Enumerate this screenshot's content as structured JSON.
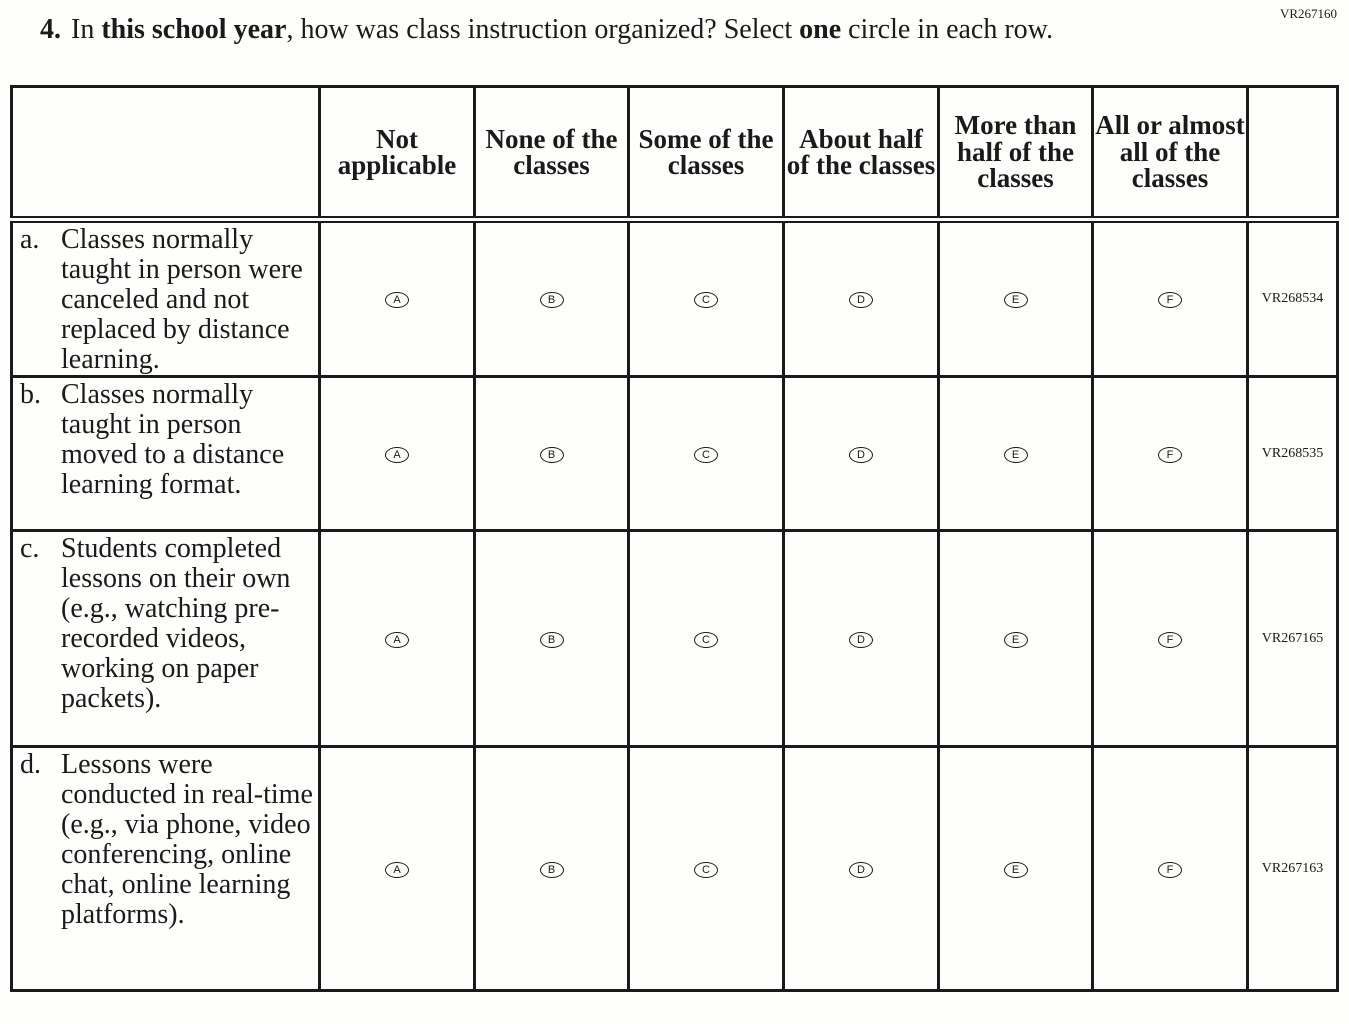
{
  "question_id": "VR267160",
  "question": {
    "number": "4.",
    "parts": [
      {
        "text": "In ",
        "bold": false
      },
      {
        "text": "this school year",
        "bold": true
      },
      {
        "text": ", how was class instruction organized? Select ",
        "bold": false
      },
      {
        "text": "one",
        "bold": true
      },
      {
        "text": " circle in each row.",
        "bold": false
      }
    ]
  },
  "columns": [
    "Not applicable",
    "None of the classes",
    "Some of the classes",
    "About half of the classes",
    "More than half of the classes",
    "All or almost all of the classes"
  ],
  "rows": [
    {
      "letter": "a.",
      "text": "Classes normally taught in person were canceled and not replaced by distance learning.",
      "code": "VR268534"
    },
    {
      "letter": "b.",
      "text": "Classes normally taught in person moved to a distance learning format.",
      "code": "VR268535"
    },
    {
      "letter": "c.",
      "text": "Students completed lessons on their own (e.g., watching pre-recorded videos, working on paper packets).",
      "code": "VR267165"
    },
    {
      "letter": "d.",
      "text": "Lessons were conducted in real-time (e.g., via phone, video conferencing, online chat, online learning platforms).",
      "code": "VR267163"
    }
  ],
  "options": [
    "A",
    "B",
    "C",
    "D",
    "E",
    "F"
  ]
}
